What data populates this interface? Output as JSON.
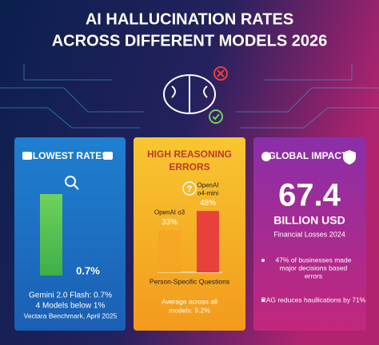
{
  "title_lines": [
    "AI HALLUCINATION RATES",
    "ACROSS DIFFERENT MODELS 2026"
  ],
  "panels": {
    "lowest": {
      "heading": "LOWEST RATES",
      "value_label": "0.7%",
      "lines": [
        "Gemini 2.0 Flash: 0.7%",
        "4 Models below 1%",
        "Vectara Benchmark, April 2025"
      ]
    },
    "reasoning": {
      "heading_lines": [
        "HIGH REASONING",
        "ERRORS"
      ],
      "bars": [
        {
          "name_lines": [
            "OpenAI o3"
          ],
          "value": 33,
          "label": "33%",
          "color": "#f5a623"
        },
        {
          "name_lines": [
            "OpenAI",
            "o4-mini"
          ],
          "value": 48,
          "label": "48%",
          "color": "#e8413c"
        }
      ],
      "caption": "Person-Specific Questions",
      "note_lines": [
        "Average across all",
        "models: 9.2%"
      ]
    },
    "impact": {
      "heading": "GLOBAL IMPACT",
      "big": "67.4",
      "unit": "BILLION USD",
      "sub": "Financial Losses 2024",
      "bullets": [
        [
          "47% of businesses made",
          "major decisions based",
          "errors"
        ],
        [
          "RAG reduces haullications by 71%"
        ]
      ]
    }
  }
}
